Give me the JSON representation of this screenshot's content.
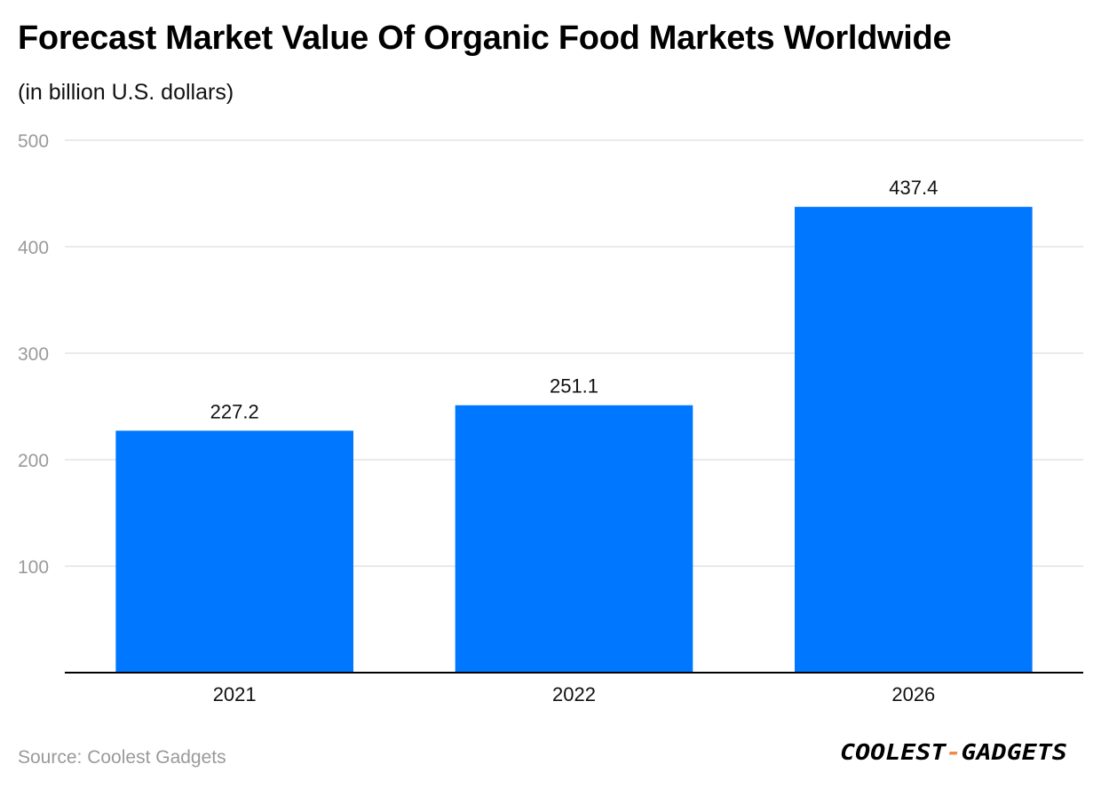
{
  "title": "Forecast Market Value Of Organic Food Markets Worldwide",
  "subtitle": "(in billion U.S. dollars)",
  "source": "Source: Coolest Gadgets",
  "logo_text": "COOLEST-GADGETS",
  "colors": {
    "bar": "#0077ff",
    "grid": "#e3e3e3",
    "axis": "#000000",
    "tick_label": "#9a9a9a",
    "logo_accent": "#f08a4b"
  },
  "chart_data": {
    "type": "bar",
    "categories": [
      "2021",
      "2022",
      "2026"
    ],
    "values": [
      227.2,
      251.1,
      437.4
    ],
    "value_labels": [
      "227.2",
      "251.1",
      "437.4"
    ],
    "xlabel": "",
    "ylabel": "",
    "ylim": [
      0,
      500
    ],
    "yticks": [
      100,
      200,
      300,
      400,
      500
    ],
    "grid": true,
    "legend": "none"
  }
}
